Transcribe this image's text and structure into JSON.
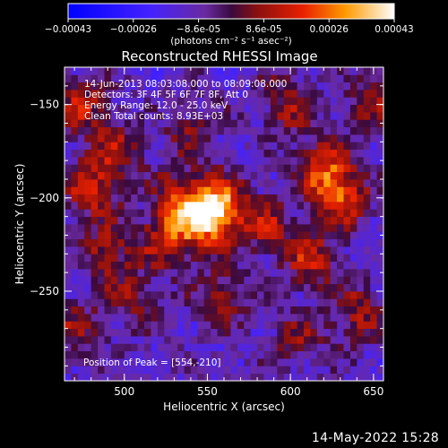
{
  "chart_data": {
    "type": "heatmap",
    "title": "Reconstructed RHESSI Image",
    "xlabel": "Heliocentric X (arcsec)",
    "ylabel": "Heliocentric Y (arcsec)",
    "xlim": [
      464,
      656
    ],
    "ylim": [
      -298,
      -130
    ],
    "xticks": [
      500,
      550,
      600,
      650
    ],
    "yticks": [
      -150,
      -200,
      -250
    ],
    "colorbar": {
      "ticks": [
        "-0.00043",
        "-0.00026",
        "-8.6e-05",
        "8.6e-05",
        "0.00026",
        "0.00043"
      ],
      "unit_label": "(photons cm⁻² s⁻¹ asec⁻²)",
      "range": [
        -0.00043,
        0.00043
      ]
    },
    "info_lines": [
      "14-Jun-2013 08:03:08.000 to 08:09:08.000",
      "Detectors: 3F 4F 5F 6F 7F 8F, Att 0",
      "Energy Range: 12.0 - 25.0 keV",
      "Clean    Total counts: 8.93E+03"
    ],
    "peak_label": "Position of Peak = [554,-210]",
    "peak": [
      554,
      -210
    ],
    "sources": [
      {
        "x": 556,
        "y": -205,
        "amp": 0.00043
      },
      {
        "x": 545,
        "y": -212,
        "amp": 0.00028
      },
      {
        "x": 525,
        "y": -222,
        "amp": 0.00024
      },
      {
        "x": 532,
        "y": -200,
        "amp": 0.00018
      },
      {
        "x": 585,
        "y": -215,
        "amp": 0.0002
      },
      {
        "x": 620,
        "y": -185,
        "amp": 0.0003
      },
      {
        "x": 632,
        "y": -200,
        "amp": 0.00026
      },
      {
        "x": 612,
        "y": -232,
        "amp": 0.00024
      },
      {
        "x": 640,
        "y": -262,
        "amp": 0.0002
      },
      {
        "x": 480,
        "y": -195,
        "amp": 0.00024
      },
      {
        "x": 495,
        "y": -175,
        "amp": 0.00018
      },
      {
        "x": 490,
        "y": -228,
        "amp": 0.0002
      },
      {
        "x": 505,
        "y": -255,
        "amp": 0.00016
      },
      {
        "x": 560,
        "y": -252,
        "amp": 0.00018
      },
      {
        "x": 540,
        "y": -165,
        "amp": 0.00014
      },
      {
        "x": 600,
        "y": -150,
        "amp": 0.0002
      },
      {
        "x": 475,
        "y": -150,
        "amp": 0.00022
      },
      {
        "x": 605,
        "y": -275,
        "amp": 0.00014
      },
      {
        "x": 470,
        "y": -270,
        "amp": 0.00016
      },
      {
        "x": 650,
        "y": -150,
        "amp": 0.00016
      }
    ]
  },
  "footer": {
    "timestamp": "14-May-2022 15:28"
  }
}
